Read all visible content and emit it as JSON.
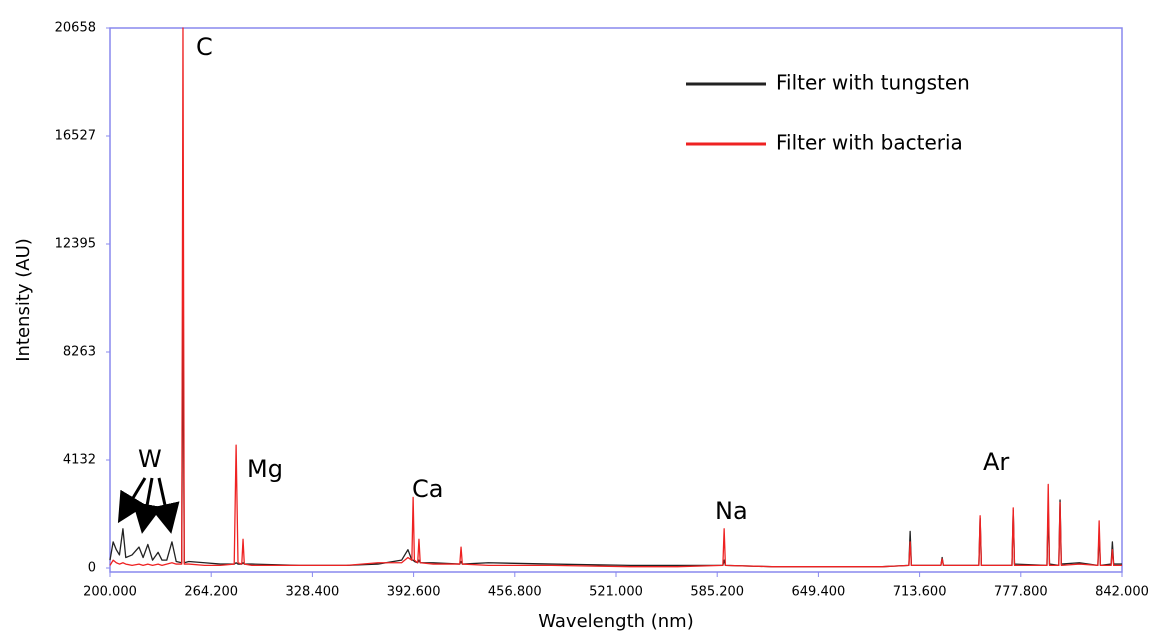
{
  "chart_data": {
    "type": "line",
    "x_label": "Wavelength (nm)",
    "y_label": "Intensity (AU)",
    "xlim": [
      200,
      842
    ],
    "ylim": [
      0,
      20658
    ],
    "xticks": [
      {
        "value": 200,
        "label": "200.000"
      },
      {
        "value": 264.2,
        "label": "264.200"
      },
      {
        "value": 328.4,
        "label": "328.400"
      },
      {
        "value": 392.6,
        "label": "392.600"
      },
      {
        "value": 456.8,
        "label": "456.800"
      },
      {
        "value": 521,
        "label": "521.000"
      },
      {
        "value": 585.2,
        "label": "585.200"
      },
      {
        "value": 649.4,
        "label": "649.400"
      },
      {
        "value": 713.6,
        "label": "713.600"
      },
      {
        "value": 777.8,
        "label": "777.800"
      },
      {
        "value": 842,
        "label": "842.000"
      }
    ],
    "yticks": [
      0,
      4132,
      8263,
      12395,
      16527,
      20658
    ],
    "legend": "upper right",
    "annotations": [
      "C",
      "W",
      "Mg",
      "Ca",
      "Na",
      "Ar"
    ],
    "x": [
      200,
      202,
      204,
      206,
      208.2,
      210,
      214,
      218.4,
      221,
      224,
      227,
      230.5,
      233,
      236,
      239.3,
      242,
      245.5,
      246.3,
      247.1,
      250,
      260,
      270,
      278.8,
      280,
      281.2,
      283.6,
      284.4,
      285.2,
      290,
      320,
      350,
      370,
      385,
      389,
      391.5,
      392.3,
      393.1,
      395.2,
      396,
      396.8,
      405,
      421.9,
      422.7,
      423.5,
      440,
      480,
      530,
      560,
      588.8,
      589.6,
      590.4,
      620,
      660,
      690,
      706.8,
      707.6,
      708.4,
      727.1,
      727.9,
      728.7,
      751.2,
      752,
      752.8,
      772.2,
      773,
      773.8,
      794.4,
      795.2,
      796,
      801.9,
      802.7,
      803.5,
      815,
      826.7,
      827.5,
      828.3,
      835.1,
      835.9,
      836.7,
      842
    ],
    "series": [
      {
        "name": "Filter with tungsten",
        "color": "#222222",
        "values": [
          300,
          1000,
          700,
          500,
          1500,
          400,
          500,
          800,
          400,
          900,
          300,
          600,
          300,
          300,
          1000,
          250,
          200,
          10800,
          200,
          250,
          200,
          150,
          150,
          200,
          150,
          150,
          200,
          150,
          150,
          100,
          100,
          150,
          300,
          700,
          300,
          300,
          250,
          200,
          300,
          200,
          200,
          150,
          250,
          150,
          200,
          150,
          100,
          100,
          100,
          300,
          100,
          50,
          50,
          50,
          100,
          1400,
          100,
          100,
          400,
          100,
          100,
          1900,
          100,
          100,
          2200,
          150,
          100,
          2300,
          150,
          100,
          2600,
          150,
          200,
          100,
          1300,
          100,
          150,
          1000,
          150,
          150
        ]
      },
      {
        "name": "Filter with bacteria",
        "color": "#ee2222",
        "values": [
          100,
          300,
          200,
          150,
          200,
          150,
          100,
          150,
          100,
          150,
          100,
          150,
          100,
          150,
          200,
          150,
          150,
          20658,
          150,
          150,
          100,
          100,
          150,
          4700,
          200,
          150,
          1100,
          150,
          100,
          100,
          100,
          200,
          200,
          400,
          300,
          2700,
          300,
          200,
          1100,
          200,
          150,
          150,
          800,
          150,
          100,
          100,
          50,
          50,
          100,
          1500,
          100,
          50,
          50,
          50,
          100,
          1000,
          100,
          100,
          350,
          100,
          100,
          2000,
          100,
          100,
          2300,
          100,
          100,
          3200,
          100,
          100,
          2500,
          100,
          150,
          100,
          1800,
          100,
          100,
          700,
          100,
          100
        ]
      }
    ]
  }
}
